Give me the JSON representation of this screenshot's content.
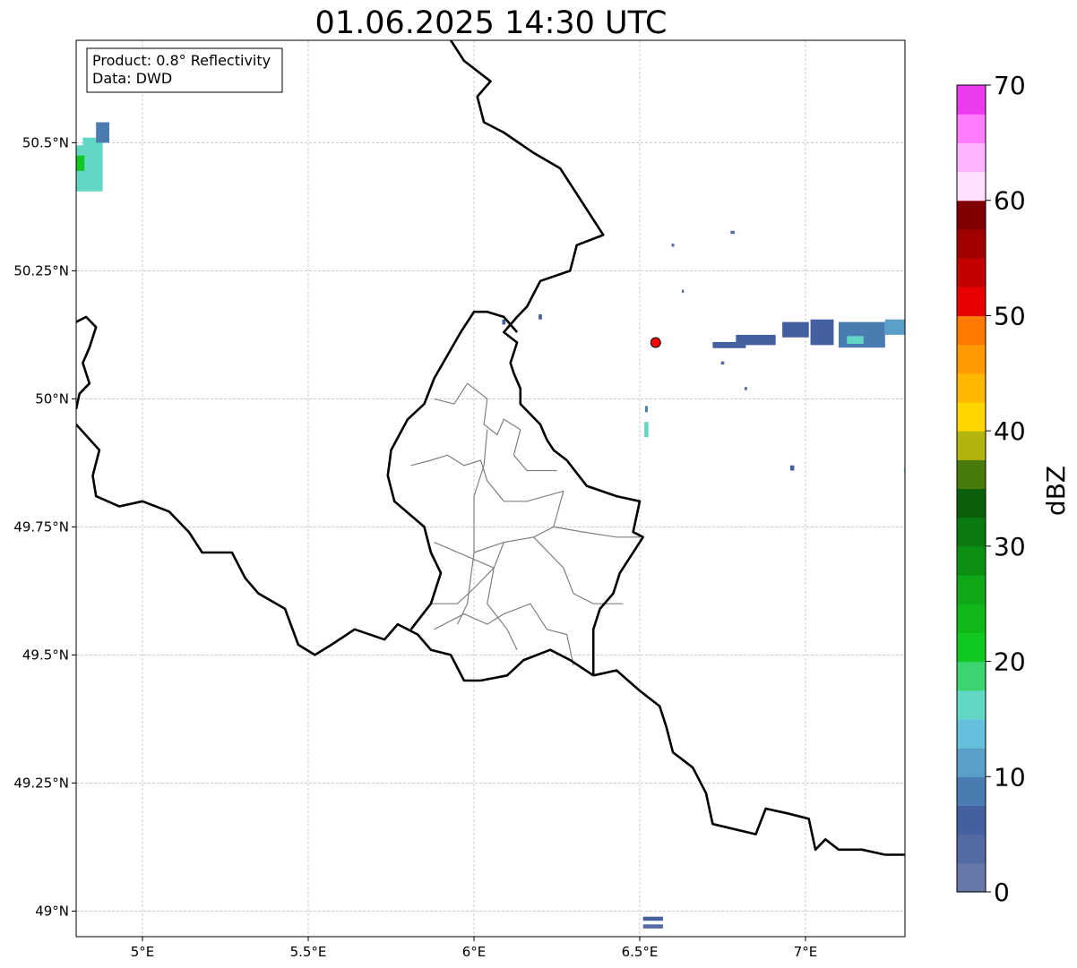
{
  "title": "01.06.2025 14:30 UTC",
  "info_box": {
    "product": "Product: 0.8° Reflectivity",
    "data": "Data: DWD"
  },
  "map": {
    "lon_range": [
      4.8,
      7.3
    ],
    "lat_range": [
      48.95,
      50.7
    ],
    "x_ticks": [
      {
        "value": 5.0,
        "label": "5°E"
      },
      {
        "value": 5.5,
        "label": "5.5°E"
      },
      {
        "value": 6.0,
        "label": "6°E"
      },
      {
        "value": 6.5,
        "label": "6.5°E"
      },
      {
        "value": 7.0,
        "label": "7°E"
      }
    ],
    "y_ticks": [
      {
        "value": 49.0,
        "label": "49°N"
      },
      {
        "value": 49.25,
        "label": "49.25°N"
      },
      {
        "value": 49.5,
        "label": "49.5°N"
      },
      {
        "value": 49.75,
        "label": "49.75°N"
      },
      {
        "value": 50.0,
        "label": "50°N"
      },
      {
        "value": 50.25,
        "label": "50.25°N"
      },
      {
        "value": 50.5,
        "label": "50.5°N"
      }
    ],
    "grid": true,
    "radar_site": {
      "lon": 6.548,
      "lat": 50.11,
      "color": "#ff0000"
    }
  },
  "colorbar": {
    "label": "dBZ",
    "min": 0,
    "max": 70,
    "step": 2.5,
    "ticks": [
      "0",
      "10",
      "20",
      "30",
      "40",
      "50",
      "60",
      "70"
    ],
    "colors": [
      "#6778a8",
      "#546aa2",
      "#4460a0",
      "#4a7cb2",
      "#5a9fc8",
      "#66c0dc",
      "#62d8c4",
      "#3cd470",
      "#10c820",
      "#10b818",
      "#10a818",
      "#0c9014",
      "#0a7a10",
      "#0a5e0c",
      "#487a0c",
      "#b0b40c",
      "#ffd600",
      "#ffb800",
      "#ff9a00",
      "#ff7a00",
      "#e80000",
      "#c40000",
      "#a00000",
      "#7e0000",
      "#ffe0ff",
      "#ffb4ff",
      "#ff7cff",
      "#ee3aee"
    ]
  },
  "echoes": [
    {
      "lon": 4.83,
      "lat": 50.45,
      "w": 0.1,
      "h": 0.09,
      "dbz": 15
    },
    {
      "lon": 4.85,
      "lat": 50.49,
      "w": 0.06,
      "h": 0.04,
      "dbz": 17
    },
    {
      "lon": 4.88,
      "lat": 50.52,
      "w": 0.04,
      "h": 0.04,
      "dbz": 8
    },
    {
      "lon": 4.81,
      "lat": 50.46,
      "w": 0.03,
      "h": 0.03,
      "dbz": 20
    },
    {
      "lon": 6.85,
      "lat": 50.115,
      "w": 0.12,
      "h": 0.02,
      "dbz": 5
    },
    {
      "lon": 6.97,
      "lat": 50.135,
      "w": 0.08,
      "h": 0.03,
      "dbz": 6
    },
    {
      "lon": 7.05,
      "lat": 50.13,
      "w": 0.07,
      "h": 0.05,
      "dbz": 7
    },
    {
      "lon": 7.17,
      "lat": 50.125,
      "w": 0.14,
      "h": 0.05,
      "dbz": 9
    },
    {
      "lon": 7.15,
      "lat": 50.115,
      "w": 0.05,
      "h": 0.015,
      "dbz": 16
    },
    {
      "lon": 7.27,
      "lat": 50.14,
      "w": 0.06,
      "h": 0.03,
      "dbz": 10
    },
    {
      "lon": 6.77,
      "lat": 50.105,
      "w": 0.1,
      "h": 0.012,
      "dbz": 5
    },
    {
      "lon": 6.52,
      "lat": 49.94,
      "w": 0.012,
      "h": 0.03,
      "dbz": 17
    },
    {
      "lon": 6.52,
      "lat": 49.98,
      "w": 0.008,
      "h": 0.012,
      "dbz": 8
    },
    {
      "lon": 6.96,
      "lat": 49.865,
      "w": 0.012,
      "h": 0.01,
      "dbz": 6
    },
    {
      "lon": 6.54,
      "lat": 48.985,
      "w": 0.06,
      "h": 0.008,
      "dbz": 6
    },
    {
      "lon": 6.54,
      "lat": 48.97,
      "w": 0.06,
      "h": 0.008,
      "dbz": 4
    },
    {
      "lon": 6.2,
      "lat": 50.16,
      "w": 0.01,
      "h": 0.01,
      "dbz": 5
    },
    {
      "lon": 6.09,
      "lat": 50.15,
      "w": 0.01,
      "h": 0.01,
      "dbz": 6
    },
    {
      "lon": 6.78,
      "lat": 50.325,
      "w": 0.012,
      "h": 0.006,
      "dbz": 4
    },
    {
      "lon": 6.6,
      "lat": 50.3,
      "w": 0.008,
      "h": 0.006,
      "dbz": 4
    },
    {
      "lon": 6.63,
      "lat": 50.21,
      "w": 0.006,
      "h": 0.006,
      "dbz": 4
    },
    {
      "lon": 6.75,
      "lat": 50.07,
      "w": 0.01,
      "h": 0.006,
      "dbz": 4
    },
    {
      "lon": 6.82,
      "lat": 50.02,
      "w": 0.008,
      "h": 0.006,
      "dbz": 4
    },
    {
      "lon": 7.3,
      "lat": 49.86,
      "w": 0.006,
      "h": 0.01,
      "dbz": 15
    }
  ],
  "borders": [
    [
      [
        5.93,
        50.7
      ],
      [
        5.97,
        50.66
      ],
      [
        6.05,
        50.62
      ],
      [
        6.01,
        50.59
      ],
      [
        6.03,
        50.54
      ],
      [
        6.09,
        50.52
      ],
      [
        6.18,
        50.48
      ],
      [
        6.26,
        50.45
      ],
      [
        6.33,
        50.38
      ],
      [
        6.39,
        50.32
      ],
      [
        6.31,
        50.3
      ],
      [
        6.29,
        50.25
      ],
      [
        6.2,
        50.23
      ],
      [
        6.16,
        50.18
      ],
      [
        6.13,
        50.16
      ],
      [
        6.09,
        50.13
      ],
      [
        6.13,
        50.11
      ],
      [
        6.11,
        50.07
      ],
      [
        6.12,
        50.05
      ],
      [
        6.14,
        50.02
      ],
      [
        6.14,
        49.99
      ],
      [
        6.2,
        49.95
      ],
      [
        6.22,
        49.92
      ],
      [
        6.24,
        49.9
      ],
      [
        6.28,
        49.88
      ],
      [
        6.34,
        49.83
      ],
      [
        6.43,
        49.81
      ],
      [
        6.5,
        49.8
      ],
      [
        6.48,
        49.74
      ],
      [
        6.51,
        49.73
      ],
      [
        6.44,
        49.66
      ],
      [
        6.42,
        49.62
      ],
      [
        6.38,
        49.59
      ],
      [
        6.36,
        49.55
      ],
      [
        6.36,
        49.46
      ]
    ],
    [
      [
        6.36,
        49.46
      ],
      [
        6.43,
        49.47
      ],
      [
        6.5,
        49.43
      ],
      [
        6.56,
        49.4
      ],
      [
        6.58,
        49.36
      ],
      [
        6.6,
        49.31
      ],
      [
        6.66,
        49.28
      ],
      [
        6.7,
        49.23
      ],
      [
        6.72,
        49.17
      ],
      [
        6.85,
        49.15
      ],
      [
        6.88,
        49.2
      ],
      [
        6.95,
        49.19
      ],
      [
        7.01,
        49.18
      ],
      [
        7.03,
        49.12
      ],
      [
        7.06,
        49.14
      ],
      [
        7.1,
        49.12
      ],
      [
        7.17,
        49.12
      ],
      [
        7.24,
        49.11
      ],
      [
        7.3,
        49.11
      ]
    ],
    [
      [
        6.36,
        49.46
      ],
      [
        6.29,
        49.49
      ],
      [
        6.23,
        49.51
      ],
      [
        6.15,
        49.49
      ],
      [
        6.1,
        49.46
      ],
      [
        6.02,
        49.45
      ],
      [
        5.97,
        49.45
      ],
      [
        5.93,
        49.5
      ],
      [
        5.87,
        49.51
      ],
      [
        5.83,
        49.54
      ],
      [
        5.8,
        49.55
      ],
      [
        5.77,
        49.56
      ],
      [
        5.73,
        49.53
      ],
      [
        5.64,
        49.55
      ],
      [
        5.57,
        49.52
      ],
      [
        5.52,
        49.5
      ],
      [
        5.47,
        49.52
      ],
      [
        5.43,
        49.59
      ],
      [
        5.35,
        49.62
      ],
      [
        5.31,
        49.65
      ],
      [
        5.27,
        49.7
      ],
      [
        5.18,
        49.7
      ],
      [
        5.14,
        49.74
      ],
      [
        5.08,
        49.78
      ],
      [
        5.0,
        49.8
      ],
      [
        4.93,
        49.79
      ],
      [
        4.86,
        49.81
      ],
      [
        4.85,
        49.85
      ],
      [
        4.87,
        49.9
      ],
      [
        4.8,
        49.95
      ]
    ],
    [
      [
        4.8,
        50.15
      ],
      [
        4.83,
        50.16
      ],
      [
        4.86,
        50.14
      ],
      [
        4.84,
        50.1
      ],
      [
        4.82,
        50.07
      ],
      [
        4.84,
        50.03
      ],
      [
        4.81,
        50.01
      ],
      [
        4.8,
        49.98
      ]
    ],
    [
      [
        5.81,
        49.55
      ],
      [
        5.87,
        49.6
      ],
      [
        5.9,
        49.66
      ],
      [
        5.87,
        49.7
      ],
      [
        5.85,
        49.75
      ],
      [
        5.76,
        49.8
      ],
      [
        5.74,
        49.85
      ],
      [
        5.75,
        49.9
      ],
      [
        5.8,
        49.96
      ],
      [
        5.85,
        49.99
      ],
      [
        5.88,
        50.04
      ],
      [
        5.96,
        50.13
      ],
      [
        6.0,
        50.17
      ],
      [
        6.04,
        50.17
      ],
      [
        6.09,
        50.16
      ],
      [
        6.13,
        50.13
      ]
    ]
  ],
  "cantons": [
    [
      [
        5.88,
        50.0
      ],
      [
        5.94,
        49.99
      ],
      [
        5.98,
        50.03
      ],
      [
        6.04,
        50.0
      ],
      [
        6.03,
        49.95
      ],
      [
        6.07,
        49.93
      ],
      [
        6.09,
        49.96
      ],
      [
        6.14,
        49.94
      ]
    ],
    [
      [
        5.81,
        49.87
      ],
      [
        5.87,
        49.88
      ],
      [
        5.92,
        49.89
      ],
      [
        5.97,
        49.87
      ],
      [
        6.02,
        49.88
      ],
      [
        6.04,
        49.84
      ],
      [
        6.09,
        49.8
      ],
      [
        6.16,
        49.8
      ],
      [
        6.27,
        49.82
      ]
    ],
    [
      [
        6.04,
        49.94
      ],
      [
        6.03,
        49.87
      ],
      [
        6.0,
        49.81
      ],
      [
        6.0,
        49.7
      ],
      [
        5.98,
        49.6
      ],
      [
        5.95,
        49.56
      ]
    ],
    [
      [
        6.14,
        49.94
      ],
      [
        6.12,
        49.89
      ],
      [
        6.16,
        49.86
      ],
      [
        6.25,
        49.86
      ]
    ],
    [
      [
        6.27,
        49.82
      ],
      [
        6.24,
        49.75
      ],
      [
        6.18,
        49.73
      ],
      [
        6.09,
        49.72
      ],
      [
        6.0,
        49.7
      ]
    ],
    [
      [
        6.24,
        49.75
      ],
      [
        6.33,
        49.74
      ],
      [
        6.43,
        49.73
      ],
      [
        6.5,
        49.73
      ]
    ],
    [
      [
        6.09,
        49.72
      ],
      [
        6.06,
        49.67
      ],
      [
        5.88,
        49.72
      ]
    ],
    [
      [
        6.06,
        49.67
      ],
      [
        6.0,
        49.63
      ],
      [
        5.95,
        49.6
      ],
      [
        5.87,
        49.6
      ]
    ],
    [
      [
        6.18,
        49.73
      ],
      [
        6.27,
        49.67
      ],
      [
        6.3,
        49.62
      ],
      [
        6.36,
        49.6
      ],
      [
        6.45,
        49.6
      ]
    ],
    [
      [
        6.06,
        49.67
      ],
      [
        6.04,
        49.6
      ],
      [
        6.1,
        49.55
      ],
      [
        6.13,
        49.51
      ]
    ],
    [
      [
        5.88,
        49.55
      ],
      [
        5.97,
        49.58
      ],
      [
        6.04,
        49.56
      ],
      [
        6.09,
        49.58
      ],
      [
        6.17,
        49.6
      ],
      [
        6.22,
        49.55
      ],
      [
        6.28,
        49.54
      ],
      [
        6.3,
        49.48
      ]
    ]
  ]
}
